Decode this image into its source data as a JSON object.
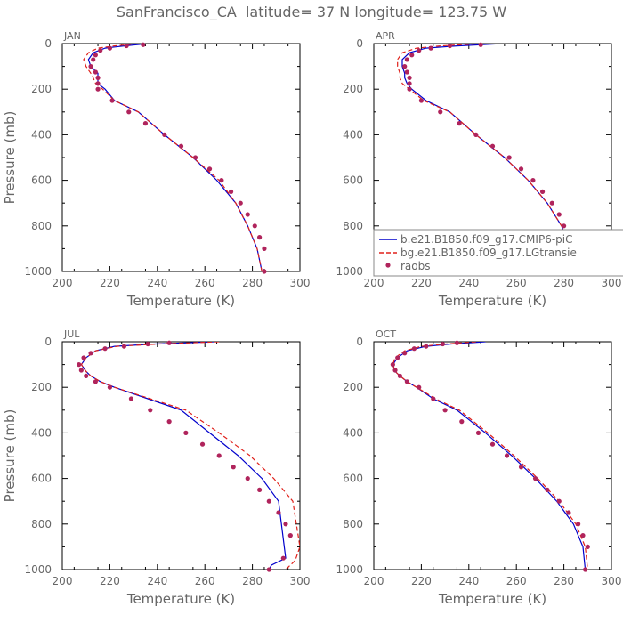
{
  "figure_title": "SanFrancisco_CA  latitude= 37 N longitude= 123.75 W",
  "colors": {
    "model1": "#0000cc",
    "model2": "#e0201a",
    "obs": "#b0245c",
    "axis": "#000000",
    "text": "#666666"
  },
  "legend": {
    "model1": "b.e21.B1850.f09_g17.CMIP6-piC",
    "model2": "bg.e21.B1850.f09_g17.LGtransie",
    "obs": "raobs"
  },
  "chart_data": [
    {
      "type": "line",
      "panel": "JAN",
      "xlabel": "Temperature (K)",
      "ylabel": "Pressure (mb)",
      "xlim": [
        200,
        300
      ],
      "ylim": [
        1000,
        0
      ],
      "xticks": [
        200,
        220,
        240,
        260,
        280,
        300
      ],
      "yticks": [
        0,
        200,
        400,
        600,
        800,
        1000
      ],
      "series": [
        {
          "name": "b.e21.B1850.f09_g17.CMIP6-piC",
          "style": "solid",
          "x": [
            236,
            226,
            218,
            213,
            211,
            212,
            215,
            215,
            215,
            218,
            222,
            232,
            243,
            255,
            265,
            273,
            278,
            282,
            284
          ],
          "y": [
            0,
            10,
            20,
            40,
            70,
            100,
            130,
            150,
            175,
            200,
            250,
            300,
            400,
            500,
            600,
            700,
            800,
            900,
            1000
          ]
        },
        {
          "name": "bg.e21.B1850.f09_g17.LGtransie",
          "style": "dashed",
          "x": [
            232,
            222,
            215,
            211,
            209,
            210,
            212,
            213,
            214,
            217,
            222,
            232,
            243,
            255,
            266,
            273,
            278,
            282,
            284
          ],
          "y": [
            0,
            10,
            20,
            40,
            70,
            100,
            130,
            150,
            175,
            200,
            250,
            300,
            400,
            500,
            600,
            700,
            800,
            900,
            1000
          ]
        },
        {
          "name": "raobs",
          "style": "points",
          "x": [
            234,
            227,
            220,
            216,
            214,
            213,
            212,
            214,
            215,
            215,
            215,
            221,
            228,
            235,
            243,
            250,
            256,
            262,
            267,
            271,
            275,
            278,
            281,
            283,
            285,
            285
          ],
          "y": [
            5,
            10,
            20,
            30,
            50,
            70,
            100,
            125,
            150,
            175,
            200,
            250,
            300,
            350,
            400,
            450,
            500,
            550,
            600,
            650,
            700,
            750,
            800,
            850,
            900,
            1000
          ]
        }
      ]
    },
    {
      "type": "line",
      "panel": "APR",
      "xlabel": "Temperature (K)",
      "ylabel": "Pressure (mb)",
      "xlim": [
        200,
        300
      ],
      "ylim": [
        1000,
        0
      ],
      "xticks": [
        200,
        220,
        240,
        260,
        280,
        300
      ],
      "yticks": [
        0,
        200,
        400,
        600,
        800,
        1000
      ],
      "series": [
        {
          "name": "b.e21.B1850.f09_g17.CMIP6-piC",
          "style": "solid",
          "x": [
            254,
            235,
            222,
            215,
            212,
            212,
            213,
            213,
            214,
            216,
            222,
            232,
            243,
            255,
            265,
            273,
            279,
            283,
            286
          ],
          "y": [
            0,
            10,
            20,
            40,
            70,
            100,
            130,
            150,
            175,
            200,
            250,
            300,
            400,
            500,
            600,
            700,
            800,
            900,
            1000
          ]
        },
        {
          "name": "bg.e21.B1850.f09_g17.LGtransie",
          "style": "dashed",
          "x": [
            246,
            228,
            218,
            212,
            210,
            210,
            211,
            211,
            212,
            215,
            221,
            232,
            243,
            255,
            265,
            273,
            279,
            283,
            286
          ],
          "y": [
            0,
            10,
            20,
            40,
            70,
            100,
            130,
            150,
            175,
            200,
            250,
            300,
            400,
            500,
            600,
            700,
            800,
            900,
            1000
          ]
        },
        {
          "name": "raobs",
          "style": "points",
          "x": [
            245,
            232,
            224,
            219,
            216,
            214,
            213,
            214,
            215,
            215,
            215,
            220,
            228,
            236,
            243,
            250,
            257,
            262,
            267,
            271,
            275,
            278,
            280,
            282,
            284,
            286
          ],
          "y": [
            5,
            10,
            20,
            30,
            50,
            70,
            100,
            125,
            150,
            175,
            200,
            250,
            300,
            350,
            400,
            450,
            500,
            550,
            600,
            650,
            700,
            750,
            800,
            850,
            900,
            1000
          ]
        }
      ]
    },
    {
      "type": "line",
      "panel": "JUL",
      "xlabel": "Temperature (K)",
      "ylabel": "Pressure (mb)",
      "xlim": [
        200,
        300
      ],
      "ylim": [
        1000,
        0
      ],
      "xticks": [
        200,
        220,
        240,
        260,
        280,
        300
      ],
      "yticks": [
        0,
        200,
        400,
        600,
        800,
        1000
      ],
      "series": [
        {
          "name": "b.e21.B1850.f09_g17.CMIP6-piC",
          "style": "solid",
          "x": [
            264,
            238,
            222,
            214,
            210,
            208,
            210,
            212,
            216,
            222,
            236,
            250,
            262,
            274,
            284,
            291,
            294,
            288,
            287
          ],
          "y": [
            0,
            10,
            20,
            40,
            70,
            100,
            130,
            150,
            175,
            200,
            250,
            300,
            400,
            500,
            600,
            700,
            950,
            980,
            1000
          ]
        },
        {
          "name": "bg.e21.B1850.f09_g17.LGtransie",
          "style": "dashed",
          "x": [
            266,
            240,
            223,
            214,
            210,
            208,
            210,
            212,
            216,
            222,
            237,
            252,
            266,
            279,
            289,
            297,
            300,
            298,
            294
          ],
          "y": [
            0,
            10,
            20,
            40,
            70,
            100,
            130,
            150,
            175,
            200,
            250,
            300,
            400,
            500,
            600,
            700,
            900,
            960,
            1000
          ]
        },
        {
          "name": "raobs",
          "style": "points",
          "x": [
            245,
            236,
            226,
            218,
            212,
            209,
            207,
            208,
            210,
            214,
            220,
            229,
            237,
            245,
            252,
            259,
            266,
            272,
            278,
            283,
            287,
            291,
            294,
            296,
            293,
            287
          ],
          "y": [
            5,
            10,
            20,
            30,
            50,
            70,
            100,
            125,
            150,
            175,
            200,
            250,
            300,
            350,
            400,
            450,
            500,
            550,
            600,
            650,
            700,
            750,
            800,
            850,
            950,
            1000
          ]
        }
      ]
    },
    {
      "type": "line",
      "panel": "OCT",
      "xlabel": "Temperature (K)",
      "ylabel": "Pressure (mb)",
      "xlim": [
        200,
        300
      ],
      "ylim": [
        1000,
        0
      ],
      "xticks": [
        200,
        220,
        240,
        260,
        280,
        300
      ],
      "yticks": [
        0,
        200,
        400,
        600,
        800,
        1000
      ],
      "series": [
        {
          "name": "b.e21.B1850.f09_g17.CMIP6-piC",
          "style": "solid",
          "x": [
            247,
            232,
            222,
            214,
            210,
            208,
            209,
            211,
            214,
            218,
            225,
            235,
            247,
            258,
            268,
            277,
            284,
            288,
            289
          ],
          "y": [
            0,
            10,
            20,
            40,
            70,
            100,
            130,
            150,
            175,
            200,
            250,
            300,
            400,
            500,
            600,
            700,
            800,
            900,
            1000
          ]
        },
        {
          "name": "bg.e21.B1850.f09_g17.LGtransie",
          "style": "dashed",
          "x": [
            243,
            230,
            220,
            213,
            209,
            208,
            209,
            211,
            214,
            218,
            226,
            236,
            248,
            259,
            269,
            278,
            285,
            289,
            290
          ],
          "y": [
            0,
            10,
            20,
            40,
            70,
            100,
            130,
            150,
            175,
            200,
            250,
            300,
            400,
            500,
            600,
            700,
            800,
            900,
            1000
          ]
        },
        {
          "name": "raobs",
          "style": "points",
          "x": [
            235,
            229,
            222,
            217,
            213,
            210,
            208,
            209,
            211,
            214,
            219,
            225,
            230,
            237,
            244,
            250,
            256,
            262,
            268,
            273,
            278,
            282,
            286,
            288,
            290,
            289
          ],
          "y": [
            5,
            10,
            20,
            30,
            50,
            70,
            100,
            125,
            150,
            175,
            200,
            250,
            300,
            350,
            400,
            450,
            500,
            550,
            600,
            650,
            700,
            750,
            800,
            850,
            900,
            1000
          ]
        }
      ]
    }
  ]
}
